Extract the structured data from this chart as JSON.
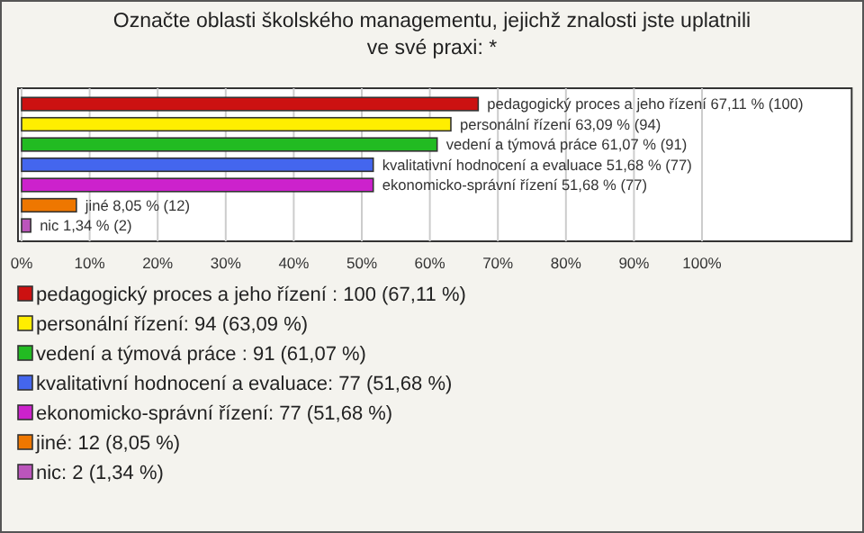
{
  "chart_data": {
    "type": "bar",
    "orientation": "horizontal",
    "title": "Označte oblasti školského managementu, jejichž znalosti jste uplatnili ve své praxi: *",
    "categories": [
      "pedagogický proces a jeho řízení",
      "personální řízení",
      "vedení a týmová práce",
      "kvalitativní hodnocení a evaluace",
      "ekonomicko-správní řízení",
      "jiné",
      "nic"
    ],
    "values": [
      67.11,
      63.09,
      61.07,
      51.68,
      51.68,
      8.05,
      1.34
    ],
    "value_labels": [
      "67,11 % (100)",
      "63,09 % (94)",
      "61,07 % (91)",
      "51,68 % (77)",
      "51,68 % (77)",
      "8,05 % (12)",
      "1,34 % (2)"
    ],
    "colors": [
      "#cc1111",
      "#ffee00",
      "#22bb22",
      "#4466ee",
      "#cc22cc",
      "#ee7700",
      "#bb55bb"
    ],
    "xlim": [
      0,
      122
    ],
    "xticks": [
      {
        "value": 0,
        "label": "0%"
      },
      {
        "value": 10,
        "label": "10%"
      },
      {
        "value": 20,
        "label": "20%"
      },
      {
        "value": 30,
        "label": "30%"
      },
      {
        "value": 40,
        "label": "40%"
      },
      {
        "value": 50,
        "label": "50%"
      },
      {
        "value": 60,
        "label": "60%"
      },
      {
        "value": 70,
        "label": "70%"
      },
      {
        "value": 80,
        "label": "80%"
      },
      {
        "value": 90,
        "label": "90%"
      },
      {
        "value": 100,
        "label": "100%"
      }
    ],
    "grid": "x",
    "tick_labels": "x",
    "annotations": [
      "pedagogický proces a jeho řízení : 100 (67,11 %)",
      "personální řízení: 94 (63,09 %)",
      "vedení a týmová práce : 91 (61,07 %)",
      "kvalitativní hodnocení a evaluace: 77 (51,68 %)",
      "ekonomicko-správní řízení: 77 (51,68 %)",
      "jiné: 12 (8,05 %)",
      "nic: 2 (1,34 %)"
    ]
  }
}
